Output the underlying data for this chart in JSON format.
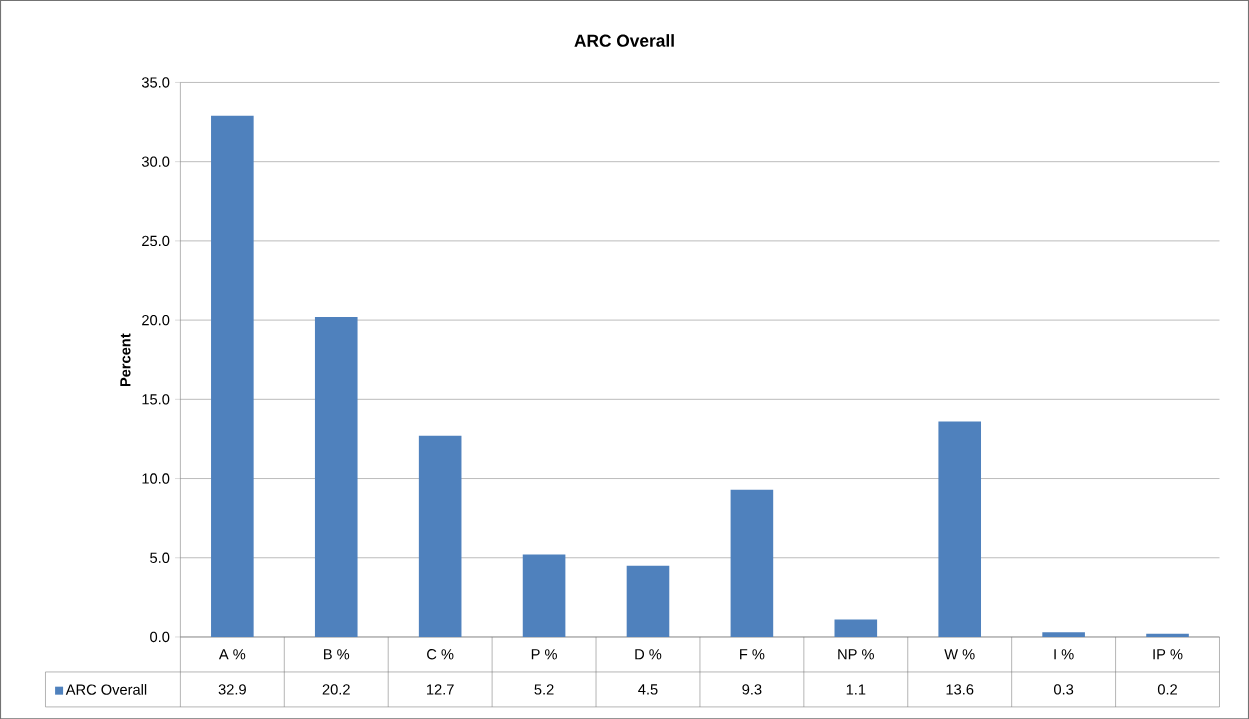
{
  "chart_data": {
    "type": "bar",
    "title": "ARC Overall",
    "ylabel": "Percent",
    "categories": [
      "A %",
      "B %",
      "C %",
      "P %",
      "D %",
      "F %",
      "NP %",
      "W %",
      "I %",
      "IP %"
    ],
    "series": [
      {
        "name": "ARC Overall",
        "color": "#4f81bd",
        "values": [
          32.9,
          20.2,
          12.7,
          5.2,
          4.5,
          9.3,
          1.1,
          13.6,
          0.3,
          0.2
        ]
      }
    ],
    "data_labels": true,
    "legend": "bottom",
    "grid": "y",
    "ylim": [
      0,
      35
    ],
    "yticks": [
      {
        "value": 0,
        "label": "0.0"
      },
      {
        "value": 5,
        "label": "5.0"
      },
      {
        "value": 10,
        "label": "10.0"
      },
      {
        "value": 15,
        "label": "15.0"
      },
      {
        "value": 20,
        "label": "20.0"
      },
      {
        "value": 25,
        "label": "25.0"
      },
      {
        "value": 30,
        "label": "30.0"
      },
      {
        "value": 35,
        "label": "35.0"
      }
    ]
  }
}
